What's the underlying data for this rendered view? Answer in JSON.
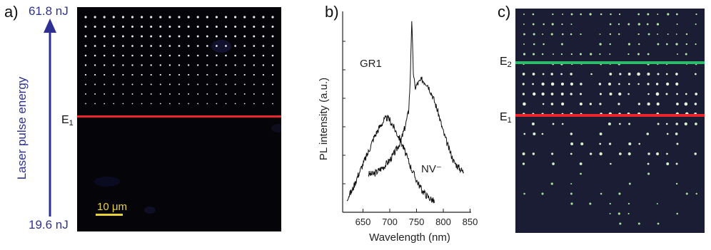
{
  "panel_a": {
    "letter": "a)",
    "energy_top": "61.8 nJ",
    "energy_bottom": "19.6 nJ",
    "axis_label": "Laser pulse energy",
    "line_label_main": "E",
    "line_label_sub": "1",
    "line_color": "#e8262b",
    "scale_bar_label": "10 μm",
    "scale_bar_color": "#e8d23a",
    "arrow_color": "#2e3192"
  },
  "panel_b": {
    "letter": "b)",
    "chart_data": {
      "type": "line",
      "xlabel": "Wavelength (nm)",
      "ylabel": "PL intensity (a.u.)",
      "xlim": [
        612,
        852
      ],
      "xticks": [
        650,
        700,
        750,
        800,
        850
      ],
      "grid": false,
      "series": [
        {
          "name": "GR1",
          "x": [
            660,
            670,
            680,
            690,
            700,
            710,
            720,
            728,
            735,
            738,
            741,
            744,
            747,
            752,
            760,
            770,
            780,
            790,
            800,
            810,
            820,
            830,
            838
          ],
          "y": [
            0.19,
            0.19,
            0.21,
            0.23,
            0.26,
            0.3,
            0.35,
            0.42,
            0.5,
            0.64,
            0.96,
            0.7,
            0.62,
            0.64,
            0.66,
            0.64,
            0.58,
            0.5,
            0.4,
            0.32,
            0.25,
            0.22,
            0.2
          ]
        },
        {
          "name": "NV⁻",
          "x": [
            620,
            630,
            640,
            650,
            660,
            670,
            680,
            690,
            695,
            700,
            710,
            720,
            730,
            740,
            750,
            760,
            770,
            780,
            784
          ],
          "y": [
            0.07,
            0.11,
            0.18,
            0.24,
            0.3,
            0.37,
            0.42,
            0.46,
            0.47,
            0.46,
            0.41,
            0.36,
            0.29,
            0.22,
            0.16,
            0.11,
            0.08,
            0.06,
            0.05
          ]
        }
      ]
    }
  },
  "panel_c": {
    "letter": "c)",
    "line1_main": "E",
    "line1_sub": "2",
    "line1_color": "#2dbb6a",
    "line2_main": "E",
    "line2_sub": "1",
    "line2_color": "#e8262b"
  }
}
